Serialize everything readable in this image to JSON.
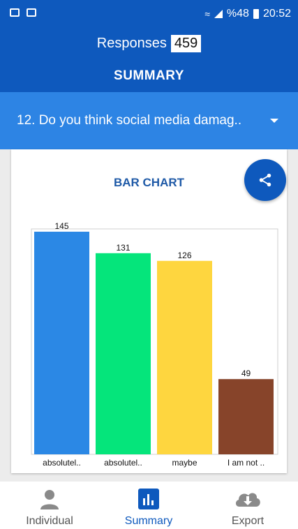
{
  "status_bar": {
    "battery_text": "%48",
    "time": "20:52"
  },
  "header": {
    "responses_label": "Responses",
    "responses_count": "459",
    "title": "SUMMARY"
  },
  "question": {
    "text": "12. Do you think social media damag.."
  },
  "card": {
    "chart_title": "BAR CHART",
    "share_icon": "share-icon"
  },
  "chart_data": {
    "type": "bar",
    "categories": [
      "absolutel..",
      "absolutel..",
      "maybe",
      "I am not .."
    ],
    "values": [
      145,
      131,
      126,
      49
    ],
    "colors": [
      "#2b88e5",
      "#05e57b",
      "#fed63f",
      "#87442a"
    ],
    "ylim": [
      0,
      145
    ]
  },
  "nav": {
    "items": [
      {
        "label": "Individual",
        "icon": "person-icon"
      },
      {
        "label": "Summary",
        "icon": "bar-chart-icon",
        "active": true
      },
      {
        "label": "Export",
        "icon": "cloud-download-icon"
      }
    ]
  }
}
